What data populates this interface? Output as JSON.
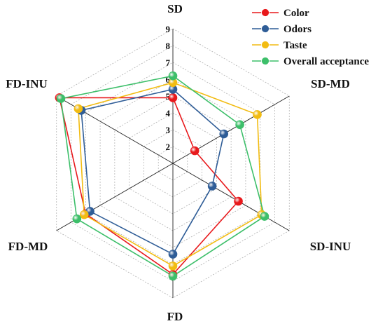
{
  "chart_data": {
    "type": "radar",
    "axes": [
      "SD",
      "SD-MD",
      "SD-INU",
      "FD",
      "FD-MD",
      "FD-INU"
    ],
    "rlim": [
      1,
      9
    ],
    "ticks": [
      "2",
      "3",
      "4",
      "5",
      "6",
      "7",
      "8",
      "9"
    ],
    "grid": "dashed hexagons",
    "legend_position": "top-right",
    "series": [
      {
        "name": "Color",
        "color": "#e8191c",
        "values": [
          4.9,
          2.5,
          5.5,
          7.6,
          7.0,
          8.8
        ]
      },
      {
        "name": "Odors",
        "color": "#2f5d97",
        "values": [
          5.4,
          4.5,
          3.7,
          6.4,
          6.7,
          7.3
        ]
      },
      {
        "name": "Taste",
        "color": "#f2bc12",
        "values": [
          5.8,
          6.8,
          7.1,
          7.1,
          7.1,
          7.5
        ]
      },
      {
        "name": "Overall acceptance",
        "color": "#3dbf6a",
        "values": [
          6.2,
          5.6,
          7.3,
          7.7,
          7.6,
          8.7
        ]
      }
    ]
  }
}
